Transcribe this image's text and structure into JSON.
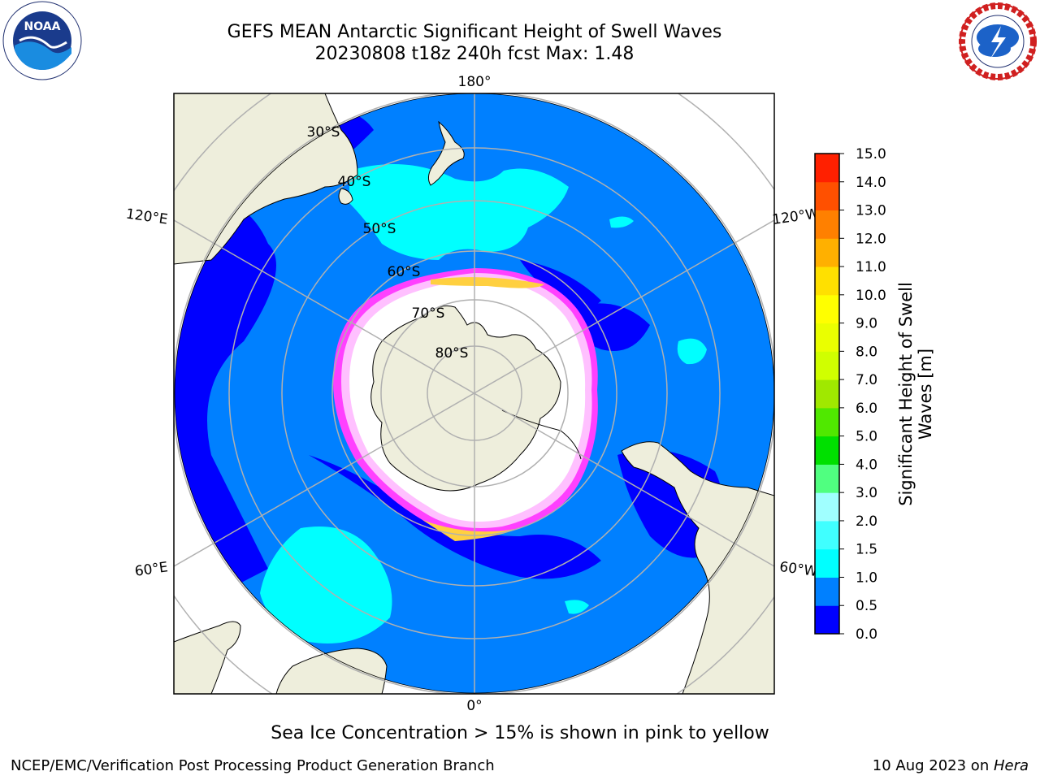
{
  "title": {
    "line1": "GEFS MEAN Antarctic Significant Height of Swell Waves",
    "line2": "20230808 t18z 240h fcst   Max: 1.48"
  },
  "note": "Sea Ice Concentration > 15% is shown in pink to yellow",
  "footer": {
    "left": "NCEP/EMC/Verification Post Processing Product Generation Branch",
    "right_text": "10 Aug 2023 on ",
    "right_italic": "Hera"
  },
  "map": {
    "projection": "south-polar-stereographic",
    "longitude_labels": {
      "top": "180°",
      "bottom": "0°",
      "upper_left": "120°E",
      "upper_right": "120°W",
      "lower_left": "60°E",
      "lower_right": "60°W"
    },
    "latitude_labels": [
      "30°S",
      "40°S",
      "50°S",
      "60°S",
      "70°S",
      "80°S"
    ],
    "colors": {
      "land": "#eeeedc",
      "ocean_1_0": "#0080ff",
      "ocean_0_5": "#0000ff",
      "swell_1_5": "#00ffff",
      "ice_interior": "#ffffff",
      "ice_edge_pink": "#ff40ff",
      "ice_edge_yellow": "#ffd040",
      "grid": "#b0b0b0"
    }
  },
  "colorbar": {
    "label_line1": "Significant Height of Swell",
    "label_line2": "Waves [m]",
    "ticks": [
      "0.0",
      "0.5",
      "1.0",
      "1.5",
      "2.0",
      "3.0",
      "4.0",
      "5.0",
      "6.0",
      "7.0",
      "8.0",
      "9.0",
      "10.0",
      "11.0",
      "12.0",
      "13.0",
      "14.0",
      "15.0"
    ],
    "colors": [
      "#0000ff",
      "#0080ff",
      "#00ffff",
      "#40ffff",
      "#a0ffff",
      "#50ff80",
      "#00e000",
      "#50e800",
      "#a0e800",
      "#d0ff00",
      "#eaff00",
      "#ffff00",
      "#ffe000",
      "#ffb000",
      "#ff8000",
      "#ff5000",
      "#ff2000",
      "#ff0000"
    ]
  },
  "logos": {
    "noaa_text": "NOAA",
    "nws_text": "NATIONAL WEATHER SERVICE"
  }
}
